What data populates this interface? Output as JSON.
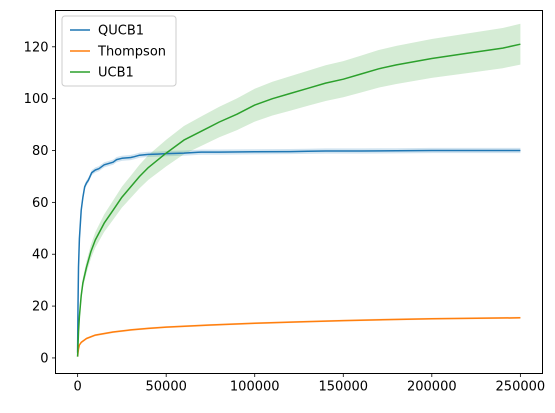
{
  "chart_data": {
    "type": "line",
    "title": "",
    "xlabel": "",
    "ylabel": "",
    "xlim": [
      -12500,
      262500
    ],
    "ylim": [
      -6,
      134
    ],
    "xticks": [
      0,
      50000,
      100000,
      150000,
      200000,
      250000
    ],
    "yticks": [
      0,
      20,
      40,
      60,
      80,
      100,
      120
    ],
    "xtick_labels": [
      "0",
      "50000",
      "100000",
      "150000",
      "200000",
      "250000"
    ],
    "ytick_labels": [
      "0",
      "20",
      "40",
      "60",
      "80",
      "100",
      "120"
    ],
    "grid": false,
    "legend": {
      "position": "top-left",
      "entries": [
        "QUCB1",
        "Thompson",
        "UCB1"
      ]
    },
    "series": [
      {
        "name": "QUCB1",
        "color": "#1f77b4",
        "x": [
          0,
          200,
          500,
          1000,
          2000,
          3000,
          4000,
          5000,
          6000,
          8000,
          10000,
          12000,
          15000,
          20000,
          22000,
          25000,
          30000,
          32000,
          35000,
          40000,
          45000,
          50000,
          60000,
          68000,
          70000,
          80000,
          100000,
          120000,
          130000,
          140000,
          160000,
          180000,
          200000,
          220000,
          250000
        ],
        "y": [
          2,
          20,
          35,
          46,
          57,
          62,
          66,
          67.5,
          68.5,
          71.5,
          72.5,
          73,
          74.5,
          75.5,
          76.5,
          77,
          77.3,
          77.6,
          78.2,
          78.5,
          78.6,
          78.8,
          79,
          79.3,
          79.4,
          79.4,
          79.5,
          79.6,
          79.7,
          79.8,
          79.8,
          79.9,
          80,
          80,
          80
        ],
        "band": 1.0
      },
      {
        "name": "Thompson",
        "color": "#ff7f0e",
        "x": [
          0,
          500,
          1000,
          2000,
          5000,
          10000,
          20000,
          30000,
          40000,
          50000,
          75000,
          100000,
          125000,
          150000,
          175000,
          200000,
          225000,
          250000
        ],
        "y": [
          0.5,
          3.5,
          5,
          6,
          7.5,
          8.8,
          10,
          10.8,
          11.4,
          11.9,
          12.7,
          13.4,
          13.9,
          14.4,
          14.8,
          15.1,
          15.3,
          15.5
        ],
        "band": 0.4
      },
      {
        "name": "UCB1",
        "color": "#2ca02c",
        "x": [
          0,
          500,
          1000,
          2000,
          3000,
          5000,
          7500,
          10000,
          15000,
          20000,
          25000,
          30000,
          35000,
          40000,
          50000,
          60000,
          70000,
          80000,
          90000,
          100000,
          110000,
          120000,
          130000,
          140000,
          150000,
          160000,
          170000,
          180000,
          200000,
          220000,
          240000,
          250000
        ],
        "y": [
          0.5,
          10,
          16,
          24,
          29,
          35,
          41,
          45.5,
          52,
          57,
          62,
          66,
          70,
          73.5,
          79,
          84,
          87.5,
          91,
          94,
          97.5,
          100,
          102,
          104,
          106,
          107.5,
          109.5,
          111.5,
          113,
          115.5,
          117.5,
          119.5,
          121
        ],
        "band_frac": 0.065
      }
    ]
  }
}
